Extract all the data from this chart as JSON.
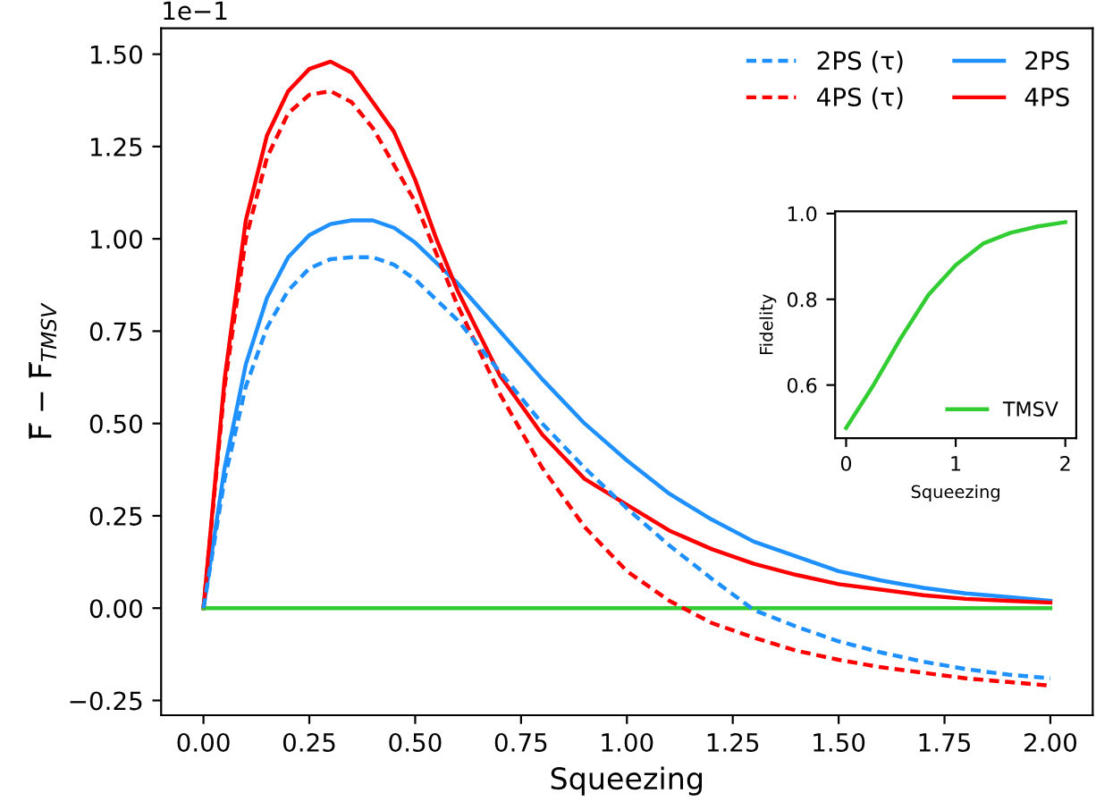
{
  "chart_data": [
    {
      "type": "line",
      "xlabel": "Squeezing",
      "ylabel": "F̅ − F̅$_{TMSV}$",
      "annotations": [
        "1e−1"
      ],
      "xlim": [
        -0.1,
        2.1
      ],
      "ylim": [
        -0.29,
        1.57
      ],
      "xticks": [
        {
          "value": 0,
          "label": "0.00"
        },
        {
          "value": 0.25,
          "label": "0.25"
        },
        {
          "value": 0.5,
          "label": "0.50"
        },
        {
          "value": 0.75,
          "label": "0.75"
        },
        {
          "value": 1,
          "label": "1.00"
        },
        {
          "value": 1.25,
          "label": "1.25"
        },
        {
          "value": 1.5,
          "label": "1.50"
        },
        {
          "value": 1.75,
          "label": "1.75"
        },
        {
          "value": 2,
          "label": "2.00"
        }
      ],
      "yticks": [
        {
          "value": -0.25,
          "label": "−0.25"
        },
        {
          "value": 0,
          "label": "0.00"
        },
        {
          "value": 0.25,
          "label": "0.25"
        },
        {
          "value": 0.5,
          "label": "0.50"
        },
        {
          "value": 0.75,
          "label": "0.75"
        },
        {
          "value": 1,
          "label": "1.00"
        },
        {
          "value": 1.25,
          "label": "1.25"
        },
        {
          "value": 1.5,
          "label": "1.50"
        }
      ],
      "grid": false,
      "legend": "top right",
      "marker": "none",
      "series": [
        {
          "name": "2PS (τ)",
          "color": "#1e90ff",
          "line_style": "dashed",
          "x": [
            0,
            0.05,
            0.1,
            0.15,
            0.2,
            0.25,
            0.3,
            0.35,
            0.4,
            0.45,
            0.5,
            0.6,
            0.7,
            0.8,
            0.9,
            1.0,
            1.1,
            1.2,
            1.3,
            1.4,
            1.5,
            1.6,
            1.7,
            1.8,
            1.9,
            2.0
          ],
          "values": [
            0,
            0.35,
            0.6,
            0.76,
            0.86,
            0.92,
            0.945,
            0.95,
            0.95,
            0.93,
            0.89,
            0.78,
            0.64,
            0.5,
            0.38,
            0.27,
            0.17,
            0.08,
            -0.005,
            -0.05,
            -0.09,
            -0.12,
            -0.145,
            -0.165,
            -0.18,
            -0.19
          ]
        },
        {
          "name": "4PS (τ)",
          "color": "#ff0000",
          "line_style": "dashed",
          "x": [
            0,
            0.05,
            0.1,
            0.15,
            0.2,
            0.25,
            0.3,
            0.35,
            0.4,
            0.5,
            0.6,
            0.7,
            0.8,
            0.9,
            1.0,
            1.1,
            1.2,
            1.3,
            1.4,
            1.5,
            1.6,
            1.7,
            1.8,
            1.9,
            2.0
          ],
          "values": [
            0,
            0.6,
            1.0,
            1.22,
            1.34,
            1.39,
            1.4,
            1.37,
            1.3,
            1.1,
            0.82,
            0.58,
            0.38,
            0.22,
            0.1,
            0.02,
            -0.04,
            -0.08,
            -0.115,
            -0.14,
            -0.16,
            -0.175,
            -0.19,
            -0.2,
            -0.21
          ]
        },
        {
          "name": "2PS",
          "color": "#1e90ff",
          "line_style": "solid",
          "x": [
            0,
            0.05,
            0.1,
            0.15,
            0.2,
            0.25,
            0.3,
            0.35,
            0.4,
            0.45,
            0.5,
            0.6,
            0.7,
            0.8,
            0.9,
            1.0,
            1.1,
            1.2,
            1.3,
            1.4,
            1.5,
            1.6,
            1.7,
            1.8,
            1.9,
            2.0
          ],
          "values": [
            0,
            0.38,
            0.66,
            0.84,
            0.95,
            1.01,
            1.04,
            1.05,
            1.05,
            1.03,
            0.99,
            0.88,
            0.75,
            0.62,
            0.5,
            0.4,
            0.31,
            0.24,
            0.18,
            0.14,
            0.1,
            0.075,
            0.055,
            0.04,
            0.03,
            0.02
          ]
        },
        {
          "name": "4PS",
          "color": "#ff0000",
          "line_style": "solid",
          "x": [
            0,
            0.05,
            0.1,
            0.15,
            0.2,
            0.25,
            0.3,
            0.35,
            0.4,
            0.45,
            0.5,
            0.55,
            0.6,
            0.7,
            0.8,
            0.9,
            1.0,
            1.1,
            1.2,
            1.3,
            1.4,
            1.5,
            1.6,
            1.7,
            1.8,
            1.9,
            2.0
          ],
          "values": [
            0,
            0.62,
            1.05,
            1.28,
            1.4,
            1.46,
            1.48,
            1.45,
            1.37,
            1.29,
            1.16,
            1.0,
            0.86,
            0.63,
            0.47,
            0.35,
            0.28,
            0.21,
            0.16,
            0.12,
            0.09,
            0.065,
            0.05,
            0.035,
            0.025,
            0.02,
            0.015
          ]
        },
        {
          "color": "#32cd32",
          "line_style": "solid",
          "x": [
            0,
            2
          ],
          "values": [
            0,
            0
          ]
        }
      ]
    },
    {
      "type": "line",
      "xlabel": "Squeezing",
      "ylabel": "Fidelity",
      "xlim": [
        -0.1,
        2.1
      ],
      "ylim": [
        0.476,
        1.005
      ],
      "xticks": [
        0,
        1,
        2
      ],
      "yticks": [
        0.6,
        0.8,
        {
          "value": 1.0,
          "label": "1.0"
        }
      ],
      "grid": false,
      "legend": "bottom right",
      "marker": "none",
      "series": [
        {
          "name": "TMSV",
          "color": "#32cd32",
          "line_style": "solid",
          "x": [
            0,
            0.25,
            0.5,
            0.75,
            1.0,
            1.25,
            1.5,
            1.75,
            2.0
          ],
          "values": [
            0.5,
            0.6,
            0.71,
            0.81,
            0.88,
            0.93,
            0.955,
            0.97,
            0.98
          ]
        }
      ]
    }
  ]
}
